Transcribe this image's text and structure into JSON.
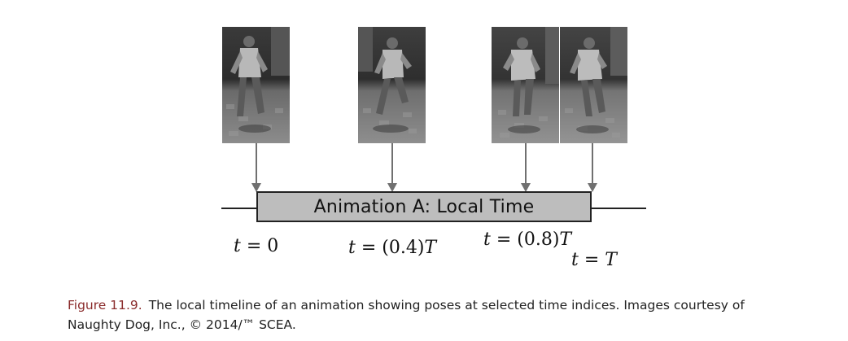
{
  "figure": {
    "timeline_label": "Animation A: Local Time",
    "time_labels": [
      {
        "var": "t",
        "eq": " = ",
        "val": "0"
      },
      {
        "var": "t",
        "eq": " = ",
        "val": "(0.4)",
        "suffix_var": "T"
      },
      {
        "var": "t",
        "eq": " = ",
        "val": "(0.8)",
        "suffix_var": "T"
      },
      {
        "var": "t",
        "eq": " = ",
        "val": "",
        "suffix_var": "T"
      }
    ],
    "frames": [
      "pose-frame-t0",
      "pose-frame-t04",
      "pose-frame-t08",
      "pose-frame-tT"
    ],
    "caption_label": "Figure 11.9.",
    "caption_text": "The local timeline of an animation showing poses at selected time indices. Images courtesy of Naughty Dog, Inc., © 2014/™ SCEA."
  },
  "colors": {
    "timeline_fill": "#bdbdbd",
    "arrow": "#707070",
    "caption_label": "#8a2b2b"
  }
}
